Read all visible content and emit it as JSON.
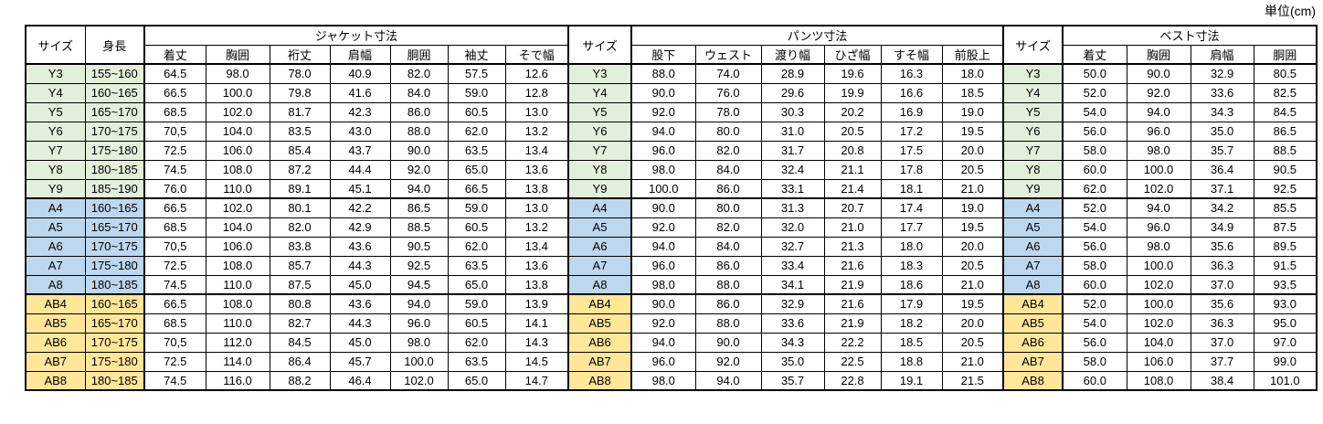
{
  "unit_label": "単位(cm)",
  "colors": {
    "y_group": "#e2efda",
    "a_group": "#bdd7ee",
    "ab_group": "#ffe699",
    "border": "#000000",
    "background": "#ffffff"
  },
  "table": {
    "size_header": "サイズ",
    "height_header": "身長",
    "sections": [
      {
        "title": "ジャケット寸法",
        "columns": [
          "着丈",
          "胸囲",
          "裄丈",
          "肩幅",
          "胴囲",
          "袖丈",
          "そで幅"
        ]
      },
      {
        "title": "パンツ寸法",
        "columns": [
          "股下",
          "ウェスト",
          "渡り幅",
          "ひざ幅",
          "すそ幅",
          "前股上"
        ]
      },
      {
        "title": "ベスト寸法",
        "columns": [
          "着丈",
          "胸囲",
          "肩幅",
          "胴囲"
        ]
      }
    ],
    "rows": [
      {
        "size": "Y3",
        "group": "y",
        "height": "155~160",
        "jacket": [
          "64.5",
          "98.0",
          "78.0",
          "40.9",
          "82.0",
          "57.5",
          "12.6"
        ],
        "pants": [
          "88.0",
          "74.0",
          "28.9",
          "19.6",
          "16.3",
          "18.0"
        ],
        "vest": [
          "50.0",
          "90.0",
          "32.9",
          "80.5"
        ]
      },
      {
        "size": "Y4",
        "group": "y",
        "height": "160~165",
        "jacket": [
          "66.5",
          "100.0",
          "79.8",
          "41.6",
          "84.0",
          "59.0",
          "12.8"
        ],
        "pants": [
          "90.0",
          "76.0",
          "29.6",
          "19.9",
          "16.6",
          "18.5"
        ],
        "vest": [
          "52.0",
          "92.0",
          "33.6",
          "82.5"
        ]
      },
      {
        "size": "Y5",
        "group": "y",
        "height": "165~170",
        "jacket": [
          "68.5",
          "102.0",
          "81.7",
          "42.3",
          "86.0",
          "60.5",
          "13.0"
        ],
        "pants": [
          "92.0",
          "78.0",
          "30.3",
          "20.2",
          "16.9",
          "19.0"
        ],
        "vest": [
          "54.0",
          "94.0",
          "34.3",
          "84.5"
        ]
      },
      {
        "size": "Y6",
        "group": "y",
        "height": "170~175",
        "jacket": [
          "70,5",
          "104.0",
          "83.5",
          "43.0",
          "88.0",
          "62.0",
          "13.2"
        ],
        "pants": [
          "94.0",
          "80.0",
          "31.0",
          "20.5",
          "17.2",
          "19.5"
        ],
        "vest": [
          "56.0",
          "96.0",
          "35.0",
          "86.5"
        ]
      },
      {
        "size": "Y7",
        "group": "y",
        "height": "175~180",
        "jacket": [
          "72.5",
          "106.0",
          "85.4",
          "43.7",
          "90.0",
          "63.5",
          "13.4"
        ],
        "pants": [
          "96.0",
          "82.0",
          "31.7",
          "20.8",
          "17.5",
          "20.0"
        ],
        "vest": [
          "58.0",
          "98.0",
          "35.7",
          "88.5"
        ]
      },
      {
        "size": "Y8",
        "group": "y",
        "height": "180~185",
        "jacket": [
          "74.5",
          "108.0",
          "87.2",
          "44.4",
          "92.0",
          "65.0",
          "13.6"
        ],
        "pants": [
          "98.0",
          "84.0",
          "32.4",
          "21.1",
          "17.8",
          "20.5"
        ],
        "vest": [
          "60.0",
          "100.0",
          "36.4",
          "90.5"
        ]
      },
      {
        "size": "Y9",
        "group": "y",
        "height": "185~190",
        "jacket": [
          "76.0",
          "110.0",
          "89.1",
          "45.1",
          "94.0",
          "66.5",
          "13.8"
        ],
        "pants": [
          "100.0",
          "86.0",
          "33.1",
          "21.4",
          "18.1",
          "21.0"
        ],
        "vest": [
          "62.0",
          "102.0",
          "37.1",
          "92.5"
        ]
      },
      {
        "size": "A4",
        "group": "a",
        "height": "160~165",
        "jacket": [
          "66.5",
          "102.0",
          "80.1",
          "42.2",
          "86.5",
          "59.0",
          "13.0"
        ],
        "pants": [
          "90.0",
          "80.0",
          "31.3",
          "20.7",
          "17.4",
          "19.0"
        ],
        "vest": [
          "52.0",
          "94.0",
          "34.2",
          "85.5"
        ]
      },
      {
        "size": "A5",
        "group": "a",
        "height": "165~170",
        "jacket": [
          "68.5",
          "104.0",
          "82.0",
          "42.9",
          "88.5",
          "60.5",
          "13.2"
        ],
        "pants": [
          "92.0",
          "82.0",
          "32.0",
          "21.0",
          "17.7",
          "19.5"
        ],
        "vest": [
          "54.0",
          "96.0",
          "34.9",
          "87.5"
        ]
      },
      {
        "size": "A6",
        "group": "a",
        "height": "170~175",
        "jacket": [
          "70,5",
          "106.0",
          "83.8",
          "43.6",
          "90.5",
          "62.0",
          "13.4"
        ],
        "pants": [
          "94.0",
          "84.0",
          "32.7",
          "21.3",
          "18.0",
          "20.0"
        ],
        "vest": [
          "56.0",
          "98.0",
          "35.6",
          "89.5"
        ]
      },
      {
        "size": "A7",
        "group": "a",
        "height": "175~180",
        "jacket": [
          "72.5",
          "108.0",
          "85.7",
          "44.3",
          "92.5",
          "63.5",
          "13.6"
        ],
        "pants": [
          "96.0",
          "86.0",
          "33.4",
          "21.6",
          "18.3",
          "20.5"
        ],
        "vest": [
          "58.0",
          "100.0",
          "36.3",
          "91.5"
        ]
      },
      {
        "size": "A8",
        "group": "a",
        "height": "180~185",
        "jacket": [
          "74.5",
          "110.0",
          "87.5",
          "45.0",
          "94.5",
          "65.0",
          "13.8"
        ],
        "pants": [
          "98.0",
          "88.0",
          "34.1",
          "21.9",
          "18.6",
          "21.0"
        ],
        "vest": [
          "60.0",
          "102.0",
          "37.0",
          "93.5"
        ]
      },
      {
        "size": "AB4",
        "group": "ab",
        "height": "160~165",
        "jacket": [
          "66.5",
          "108.0",
          "80.8",
          "43.6",
          "94.0",
          "59.0",
          "13.9"
        ],
        "pants": [
          "90.0",
          "86.0",
          "32.9",
          "21.6",
          "17.9",
          "19.5"
        ],
        "vest": [
          "52.0",
          "100.0",
          "35.6",
          "93.0"
        ]
      },
      {
        "size": "AB5",
        "group": "ab",
        "height": "165~170",
        "jacket": [
          "68.5",
          "110.0",
          "82.7",
          "44.3",
          "96.0",
          "60.5",
          "14.1"
        ],
        "pants": [
          "92.0",
          "88.0",
          "33.6",
          "21.9",
          "18.2",
          "20.0"
        ],
        "vest": [
          "54.0",
          "102.0",
          "36.3",
          "95.0"
        ]
      },
      {
        "size": "AB6",
        "group": "ab",
        "height": "170~175",
        "jacket": [
          "70,5",
          "112.0",
          "84.5",
          "45.0",
          "98.0",
          "62.0",
          "14.3"
        ],
        "pants": [
          "94.0",
          "90.0",
          "34.3",
          "22.2",
          "18.5",
          "20.5"
        ],
        "vest": [
          "56.0",
          "104.0",
          "37.0",
          "97.0"
        ]
      },
      {
        "size": "AB7",
        "group": "ab",
        "height": "175~180",
        "jacket": [
          "72.5",
          "114.0",
          "86.4",
          "45.7",
          "100.0",
          "63.5",
          "14.5"
        ],
        "pants": [
          "96.0",
          "92.0",
          "35.0",
          "22.5",
          "18.8",
          "21.0"
        ],
        "vest": [
          "58.0",
          "106.0",
          "37.7",
          "99.0"
        ]
      },
      {
        "size": "AB8",
        "group": "ab",
        "height": "180~185",
        "jacket": [
          "74.5",
          "116.0",
          "88.2",
          "46.4",
          "102.0",
          "65.0",
          "14.7"
        ],
        "pants": [
          "98.0",
          "94.0",
          "35.7",
          "22.8",
          "19.1",
          "21.5"
        ],
        "vest": [
          "60.0",
          "108.0",
          "38.4",
          "101.0"
        ]
      }
    ]
  }
}
